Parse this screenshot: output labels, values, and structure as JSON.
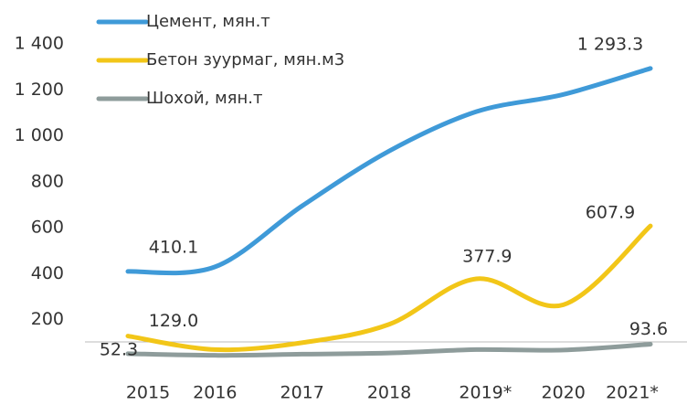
{
  "chart_data": {
    "type": "line",
    "categories": [
      "2015",
      "2016",
      "2017",
      "2018",
      "2019*",
      "2020",
      "2021*"
    ],
    "series": [
      {
        "name": "Цемент, мян.т",
        "color": "#3f9ad8",
        "values": [
          410.1,
          430,
          695,
          934,
          1105,
          1180,
          1293.3
        ],
        "value_labels": [
          "410.1",
          null,
          null,
          null,
          null,
          null,
          "1 293.3"
        ]
      },
      {
        "name": "Бетон зуурмаг, мян.м3",
        "color": "#f2c618",
        "values": [
          129.0,
          70,
          100,
          180,
          377.9,
          265,
          607.9
        ],
        "value_labels": [
          "129.0",
          null,
          null,
          null,
          "377.9",
          null,
          "607.9"
        ]
      },
      {
        "name": "Шохой, мян.т",
        "color": "#8e9c9b",
        "values": [
          52.3,
          45,
          50,
          55,
          70,
          68,
          93.6
        ],
        "value_labels": [
          "52.3",
          null,
          null,
          null,
          null,
          null,
          "93.6"
        ]
      }
    ],
    "ylim": [
      0,
      1400
    ],
    "yticks": [
      200,
      400,
      600,
      800,
      {
        "value": 1000,
        "label": "1 000"
      },
      {
        "value": 1200,
        "label": "1 200"
      },
      {
        "value": 1400,
        "label": "1 400"
      }
    ],
    "legend": "top-left",
    "grid": false
  }
}
